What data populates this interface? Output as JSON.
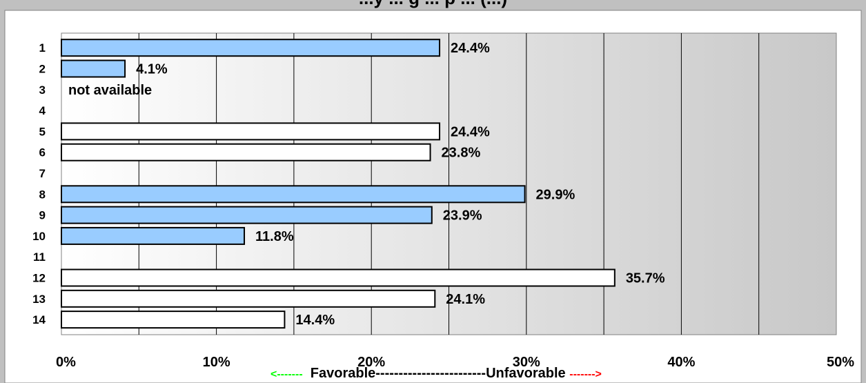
{
  "chart_data": {
    "type": "bar",
    "orientation": "horizontal",
    "title": "...y ... g ... p ... (...)",
    "categories": [
      "1",
      "2",
      "3",
      "4",
      "5",
      "6",
      "7",
      "8",
      "9",
      "10",
      "11",
      "12",
      "13",
      "14"
    ],
    "values": [
      24.4,
      4.1,
      null,
      null,
      24.4,
      23.8,
      null,
      29.9,
      23.9,
      11.8,
      null,
      35.7,
      24.1,
      14.4
    ],
    "value_labels": [
      "24.4%",
      "4.1%",
      "not available",
      "",
      "24.4%",
      "23.8%",
      "",
      "29.9%",
      "23.9%",
      "11.8%",
      "",
      "35.7%",
      "24.1%",
      "14.4%"
    ],
    "bar_colors": [
      "#99ccff",
      "#99ccff",
      null,
      null,
      "#ffffff",
      "#ffffff",
      null,
      "#99ccff",
      "#99ccff",
      "#99ccff",
      null,
      "#ffffff",
      "#ffffff",
      "#ffffff"
    ],
    "xlim": [
      0,
      50
    ],
    "x_ticks": [
      0,
      10,
      20,
      30,
      40,
      50
    ],
    "x_tick_labels": [
      "0%",
      "10%",
      "20%",
      "30%",
      "40%",
      "50%"
    ],
    "grid": "vertical every 5%",
    "xlabel": "",
    "ylabel": ""
  },
  "legend": {
    "left_arrow": "<-------",
    "favorable": "Favorable",
    "dashes": "------------------------",
    "unfavorable": "Unfavorable",
    "right_arrow": "------->"
  }
}
